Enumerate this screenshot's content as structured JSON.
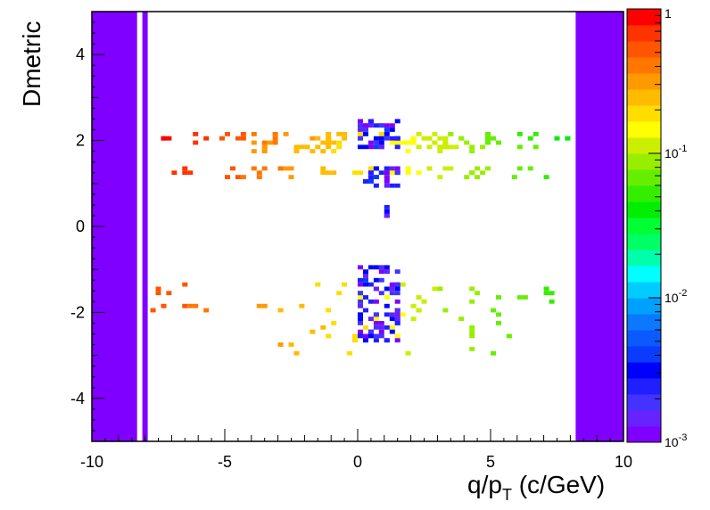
{
  "chart_data": {
    "type": "heatmap",
    "title": "",
    "xlabel": "q/p",
    "xlabel_sub": "T",
    "xlabel_unit": " (c/GeV)",
    "ylabel": "Dmetric",
    "xlim": [
      -10,
      10
    ],
    "ylim": [
      -5,
      5
    ],
    "grid": false,
    "x_ticks": [
      {
        "value": -10,
        "label": "-10"
      },
      {
        "value": -5,
        "label": "-5"
      },
      {
        "value": 0,
        "label": "0"
      },
      {
        "value": 5,
        "label": "5"
      },
      {
        "value": 10,
        "label": "10"
      }
    ],
    "y_ticks": [
      {
        "value": -4,
        "label": "-4"
      },
      {
        "value": -2,
        "label": "-2"
      },
      {
        "value": 0,
        "label": "0"
      },
      {
        "value": 2,
        "label": "2"
      },
      {
        "value": 4,
        "label": "4"
      }
    ],
    "colorbar": {
      "scale": "log",
      "zlim": [
        0.001,
        1
      ],
      "ticks": [
        {
          "value": 1,
          "base": "1",
          "exp": ""
        },
        {
          "value": 0.1,
          "base": "10",
          "exp": "-1"
        },
        {
          "value": 0.01,
          "base": "10",
          "exp": "-2"
        },
        {
          "value": 0.001,
          "base": "10",
          "exp": "-3"
        }
      ],
      "palette": [
        "#7f00ff",
        "#6622ff",
        "#4433ff",
        "#1f1fff",
        "#0000ff",
        "#0a3cff",
        "#0a5aff",
        "#0a78ff",
        "#00a0ff",
        "#00ccff",
        "#00ffff",
        "#00ffaa",
        "#00ff66",
        "#00ff33",
        "#00ee00",
        "#33ee00",
        "#66ee00",
        "#99ee00",
        "#ccee00",
        "#ffff00",
        "#ffdd00",
        "#ffbb00",
        "#ff9900",
        "#ff7700",
        "#ff5500",
        "#ff3300",
        "#ff0000"
      ]
    },
    "fill_regions": [
      {
        "x": [
          -10,
          -8.3
        ],
        "y": [
          -5,
          5
        ],
        "value": 0.001
      },
      {
        "x": [
          -8.1,
          -7.9
        ],
        "y": [
          -5,
          5
        ],
        "value": 0.001
      },
      {
        "x": [
          8.2,
          10
        ],
        "y": [
          -5,
          5
        ],
        "value": 0.001
      }
    ],
    "band_cells": [
      {
        "x": [
          -7.5,
          8.0
        ],
        "y": 2.05,
        "n": 60,
        "zstart": 0.9,
        "zend": 0.04,
        "spread": 0.12
      },
      {
        "x": [
          -5.0,
          7.0
        ],
        "y": 1.85,
        "n": 40,
        "zstart": 0.4,
        "zend": 0.06,
        "spread": 0.1
      },
      {
        "x": [
          -7.2,
          7.5
        ],
        "y": 1.25,
        "n": 50,
        "zstart": 0.8,
        "zend": 0.05,
        "spread": 0.12
      },
      {
        "x": [
          -8.0,
          7.5
        ],
        "y": -1.65,
        "n": 40,
        "zstart": 0.6,
        "zend": 0.05,
        "spread": 0.35
      },
      {
        "x": [
          -3.0,
          6.0
        ],
        "y": -2.5,
        "n": 30,
        "zstart": 0.3,
        "zend": 0.06,
        "spread": 0.5
      }
    ],
    "core_cells": [
      {
        "x": [
          0.0,
          1.6
        ],
        "y": [
          1.8,
          2.5
        ],
        "n": 40
      },
      {
        "x": [
          0.0,
          1.5
        ],
        "y": [
          0.9,
          1.4
        ],
        "n": 25
      },
      {
        "x": [
          0.0,
          1.6
        ],
        "y": [
          -2.7,
          -0.8
        ],
        "n": 80
      },
      {
        "x": [
          1.0,
          1.3
        ],
        "y": [
          0.2,
          0.6
        ],
        "n": 4
      }
    ]
  }
}
